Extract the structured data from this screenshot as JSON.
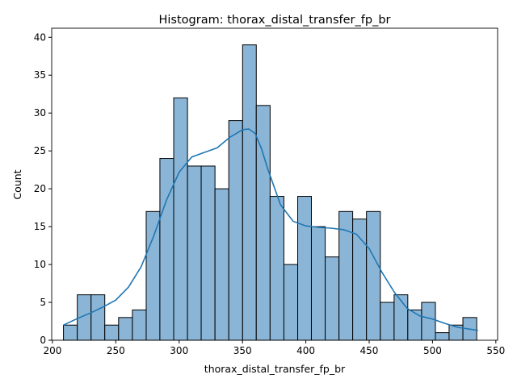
{
  "chart_data": {
    "type": "bar",
    "title": "Histogram: thorax_distal_transfer_fp_br",
    "xlabel": "thorax_distal_transfer_fp_br",
    "ylabel": "Count",
    "xlim": [
      199.4,
      551.4
    ],
    "ylim": [
      0,
      41.2
    ],
    "xticks": [
      200,
      250,
      300,
      350,
      400,
      450,
      500,
      550
    ],
    "yticks": [
      0,
      5,
      10,
      15,
      20,
      25,
      30,
      35,
      40
    ],
    "bin_edges": [
      208.7,
      219.6,
      230.5,
      241.3,
      252.2,
      263.1,
      274.0,
      284.8,
      295.7,
      306.6,
      317.4,
      328.3,
      339.2,
      350.1,
      360.9,
      371.8,
      382.7,
      393.6,
      404.4,
      415.3,
      426.2,
      437.0,
      447.9,
      458.8,
      469.7,
      480.5,
      491.4,
      502.3,
      513.1,
      524.0,
      534.9
    ],
    "counts": [
      2,
      6,
      6,
      2,
      3,
      4,
      17,
      24,
      32,
      23,
      23,
      20,
      29,
      39,
      31,
      19,
      10,
      19,
      15,
      11,
      17,
      16,
      17,
      5,
      6,
      4,
      5,
      1,
      2,
      3
    ],
    "bar_color": "#8ab5d6",
    "edge_color": "#000000",
    "kde_color": "#1f77b4",
    "kde": {
      "x": [
        208.7,
        220,
        230,
        240,
        250,
        260,
        270,
        280,
        290,
        300,
        310,
        320,
        330,
        340,
        350,
        355,
        360,
        365,
        370,
        380,
        390,
        400,
        410,
        420,
        430,
        440,
        450,
        460,
        470,
        480,
        490,
        500,
        510,
        520,
        535.9
      ],
      "y": [
        2.0,
        2.9,
        3.6,
        4.4,
        5.3,
        7.0,
        9.7,
        13.8,
        18.5,
        22.2,
        24.2,
        24.8,
        25.4,
        26.8,
        27.8,
        27.9,
        27.3,
        25.3,
        22.6,
        17.9,
        15.7,
        15.1,
        14.9,
        14.8,
        14.6,
        14.0,
        12.1,
        9.0,
        6.3,
        4.2,
        3.2,
        2.8,
        2.2,
        1.7,
        1.3
      ]
    }
  }
}
